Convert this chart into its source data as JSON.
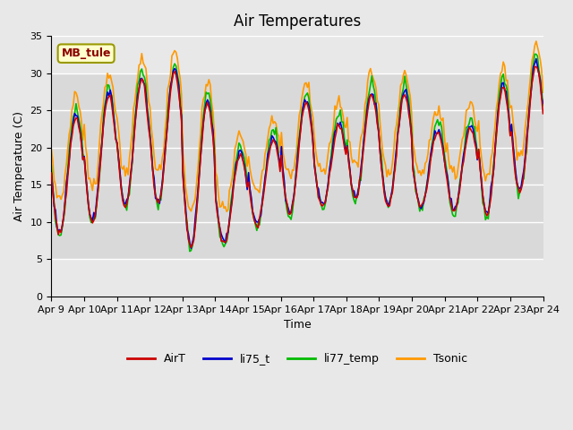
{
  "title": "Air Temperatures",
  "xlabel": "Time",
  "ylabel": "Air Temperature (C)",
  "ylim": [
    0,
    35
  ],
  "yticks": [
    0,
    5,
    10,
    15,
    20,
    25,
    30,
    35
  ],
  "site_label": "MB_tule",
  "legend_entries": [
    "AirT",
    "li75_t",
    "li77_temp",
    "Tsonic"
  ],
  "line_colors": [
    "#cc0000",
    "#0000cc",
    "#00bb00",
    "#ff9900"
  ],
  "x_tick_labels": [
    "Apr 9",
    "Apr 10",
    "Apr 11",
    "Apr 12",
    "Apr 13",
    "Apr 14",
    "Apr 15",
    "Apr 16",
    "Apr 17",
    "Apr 18",
    "Apr 19",
    "Apr 20",
    "Apr 21",
    "Apr 22",
    "Apr 23",
    "Apr 24"
  ],
  "n_days": 15,
  "points_per_day": 24,
  "mins": [
    8.5,
    10,
    12,
    12.5,
    6.5,
    7,
    9.5,
    11,
    12,
    13,
    12,
    12,
    11.5,
    11,
    14
  ],
  "maxs": [
    24,
    27,
    29,
    30,
    26,
    19,
    21,
    26,
    23,
    27,
    27,
    22,
    22.5,
    28,
    31
  ]
}
